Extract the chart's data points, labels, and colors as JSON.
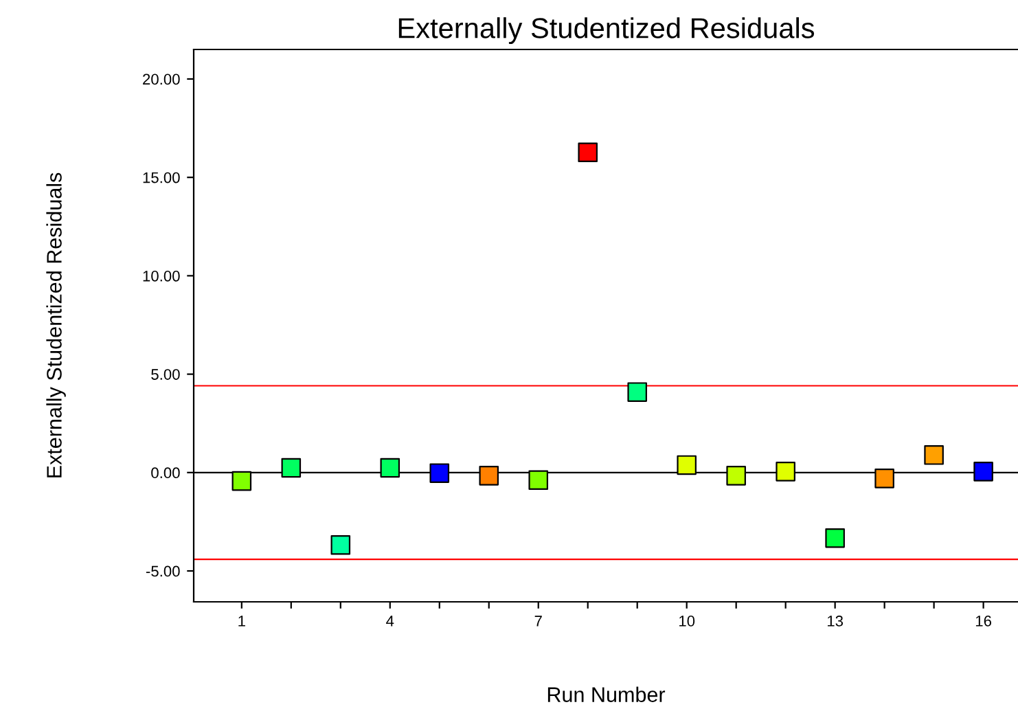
{
  "chart_data": {
    "type": "scatter",
    "title": "Externally Studentized Residuals",
    "xlabel": "Run Number",
    "ylabel": "Externally Studentized Residuals",
    "x": [
      1,
      2,
      3,
      4,
      5,
      6,
      7,
      8,
      9,
      10,
      11,
      12,
      13,
      14,
      15,
      16
    ],
    "values": [
      -0.43,
      0.24,
      -3.68,
      0.24,
      -0.03,
      -0.16,
      -0.38,
      16.27,
      4.09,
      0.38,
      -0.16,
      0.05,
      -3.33,
      -0.3,
      0.89,
      0.05
    ],
    "colors": [
      "#80ff00",
      "#00ff60",
      "#00ffa0",
      "#00ff60",
      "#0000ff",
      "#ff8000",
      "#80ff00",
      "#ff0000",
      "#00ff80",
      "#e0ff00",
      "#c0ff00",
      "#e0ff00",
      "#00ff40",
      "#ff9000",
      "#ffa000",
      "#0000ff"
    ],
    "marker": "square",
    "grid": false,
    "xlim": [
      0.03,
      16.7
    ],
    "xticks": [
      1,
      {
        "value": 2,
        "label": null
      },
      {
        "value": 3,
        "label": null
      },
      4,
      {
        "value": 5,
        "label": null
      },
      {
        "value": 6,
        "label": null
      },
      7,
      {
        "value": 8,
        "label": null
      },
      {
        "value": 9,
        "label": null
      },
      10,
      {
        "value": 11,
        "label": null
      },
      {
        "value": 12,
        "label": null
      },
      13,
      {
        "value": 14,
        "label": null
      },
      {
        "value": 15,
        "label": null
      },
      16
    ],
    "ylim": [
      -6.57,
      21.5
    ],
    "yticks": [
      {
        "value": -5,
        "label": "-5.00"
      },
      {
        "value": 0,
        "label": "0.00"
      },
      {
        "value": 5,
        "label": "5.00"
      },
      {
        "value": 10,
        "label": "10.00"
      },
      {
        "value": 15,
        "label": "15.00"
      },
      {
        "value": 20,
        "label": "20.00"
      }
    ],
    "ref_lines": [
      {
        "axis": "y",
        "value": 4.41,
        "color": "#ff0000"
      },
      {
        "axis": "y",
        "value": 0,
        "color": "#000000"
      },
      {
        "axis": "y",
        "value": -4.41,
        "color": "#ff0000"
      }
    ]
  }
}
